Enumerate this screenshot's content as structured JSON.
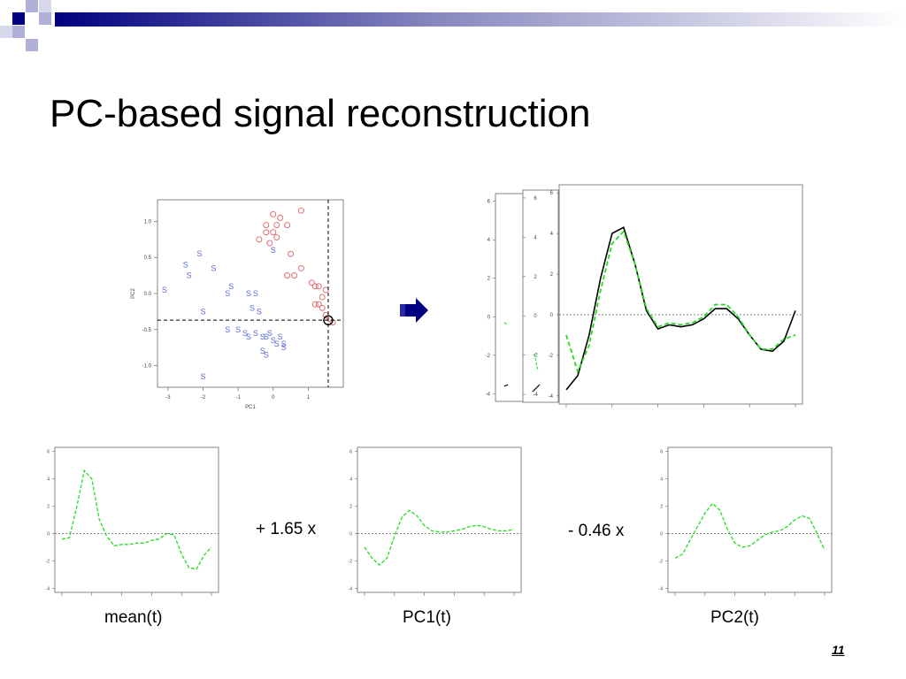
{
  "slide": {
    "title": "PC-based signal reconstruction",
    "page_number": "11",
    "coef_pc1": "+ 1.65 x",
    "coef_pc2": "- 0.46 x",
    "colors": {
      "header_bar": "#000080",
      "scatter_s": "#5a6ad8",
      "scatter_o": "#e06060",
      "curve_fit": "#22dd22",
      "curve_true": "#000000",
      "arrow": "#000080"
    }
  },
  "header_decoration": {
    "icon": "checkered-squares-icon"
  },
  "arrow": {
    "icon": "right-arrow-icon"
  },
  "scatter": {
    "xlabel": "PC1",
    "ylabel": "PC2",
    "xticks": [
      -3,
      -2,
      -1,
      0,
      1
    ],
    "yticks": [
      -1.0,
      -0.5,
      0.0,
      0.5,
      1.0
    ],
    "xlim": [
      -3.3,
      2.0
    ],
    "ylim": [
      -1.3,
      1.3
    ],
    "marker_x": 1.57,
    "marker_y": -0.37,
    "s_points": [
      [
        -3.1,
        0.05
      ],
      [
        -2.5,
        0.4
      ],
      [
        -2.4,
        0.25
      ],
      [
        -2.1,
        0.55
      ],
      [
        -2.0,
        -0.25
      ],
      [
        -1.7,
        0.35
      ],
      [
        -1.3,
        -0.5
      ],
      [
        -1.3,
        0.0
      ],
      [
        -1.2,
        0.1
      ],
      [
        -1.0,
        -0.5
      ],
      [
        -0.8,
        -0.55
      ],
      [
        -0.7,
        -0.6
      ],
      [
        -0.7,
        0.0
      ],
      [
        -0.6,
        -0.2
      ],
      [
        -0.5,
        0.0
      ],
      [
        -0.5,
        -0.55
      ],
      [
        -0.4,
        -0.25
      ],
      [
        -0.3,
        -0.6
      ],
      [
        -0.3,
        -0.8
      ],
      [
        -0.2,
        -0.85
      ],
      [
        -0.2,
        -0.6
      ],
      [
        -0.1,
        -0.55
      ],
      [
        0.0,
        -0.65
      ],
      [
        0.1,
        -0.7
      ],
      [
        0.2,
        -0.6
      ],
      [
        0.3,
        -0.7
      ],
      [
        0.3,
        -0.75
      ],
      [
        0.0,
        0.6
      ],
      [
        -2.0,
        -1.15
      ]
    ],
    "o_points": [
      [
        -0.4,
        0.75
      ],
      [
        -0.2,
        0.85
      ],
      [
        -0.1,
        0.7
      ],
      [
        -0.2,
        0.95
      ],
      [
        0.0,
        0.85
      ],
      [
        0.1,
        0.95
      ],
      [
        0.1,
        0.78
      ],
      [
        0.2,
        1.05
      ],
      [
        0.0,
        1.1
      ],
      [
        0.4,
        0.95
      ],
      [
        0.5,
        0.55
      ],
      [
        0.6,
        0.25
      ],
      [
        0.8,
        0.35
      ],
      [
        0.4,
        0.25
      ],
      [
        1.1,
        0.15
      ],
      [
        1.2,
        0.1
      ],
      [
        1.3,
        0.1
      ],
      [
        1.2,
        -0.15
      ],
      [
        1.3,
        -0.15
      ],
      [
        1.4,
        -0.2
      ],
      [
        1.4,
        -0.05
      ],
      [
        1.5,
        0.05
      ],
      [
        1.5,
        -0.3
      ],
      [
        1.6,
        -0.35
      ],
      [
        1.7,
        -0.4
      ],
      [
        0.8,
        1.15
      ]
    ]
  },
  "recon_plot": {
    "yticks": [
      -4,
      -2,
      0,
      2,
      4,
      6
    ],
    "ylim": [
      -4.4,
      6.4
    ],
    "x": [
      0.0,
      0.05,
      0.1,
      0.15,
      0.2,
      0.25,
      0.3,
      0.35,
      0.4,
      0.45,
      0.5,
      0.55,
      0.6,
      0.65,
      0.7,
      0.75,
      0.8,
      0.85,
      0.9,
      0.95,
      1.0
    ],
    "true_y": [
      -3.7,
      -3.0,
      -1.0,
      1.8,
      4.0,
      4.3,
      2.5,
      0.2,
      -0.7,
      -0.5,
      -0.6,
      -0.5,
      -0.2,
      0.3,
      0.3,
      -0.2,
      -1.0,
      -1.7,
      -1.8,
      -1.3,
      0.2
    ],
    "fit_y": [
      -1.0,
      -2.8,
      -1.5,
      1.2,
      3.5,
      4.1,
      2.5,
      0.3,
      -0.6,
      -0.4,
      -0.5,
      -0.4,
      -0.1,
      0.5,
      0.5,
      -0.1,
      -1.0,
      -1.7,
      -1.7,
      -1.2,
      -1.0
    ]
  },
  "small_plots": {
    "yticks": [
      -4,
      -2,
      0,
      2,
      4,
      6
    ],
    "ylim": [
      -4.3,
      6.3
    ],
    "mean": {
      "caption": "mean(t)",
      "y": [
        -0.4,
        -0.3,
        2.0,
        4.6,
        4.0,
        1.0,
        -0.2,
        -0.9,
        -0.8,
        -0.8,
        -0.7,
        -0.7,
        -0.5,
        -0.4,
        0.0,
        -0.1,
        -1.5,
        -2.5,
        -2.6,
        -1.6,
        -1.0
      ]
    },
    "pc1": {
      "caption": "PC1(t)",
      "y": [
        -1.0,
        -1.8,
        -2.3,
        -1.8,
        -0.2,
        1.2,
        1.7,
        1.3,
        0.6,
        0.2,
        0.1,
        0.1,
        0.2,
        0.3,
        0.5,
        0.6,
        0.5,
        0.3,
        0.2,
        0.2,
        0.3
      ]
    },
    "pc2": {
      "caption": "PC2(t)",
      "y": [
        -1.8,
        -1.5,
        -0.5,
        0.5,
        1.5,
        2.2,
        1.7,
        0.3,
        -0.7,
        -1.0,
        -0.9,
        -0.5,
        -0.1,
        0.1,
        0.2,
        0.5,
        1.0,
        1.3,
        1.1,
        0.0,
        -1.2
      ]
    }
  }
}
